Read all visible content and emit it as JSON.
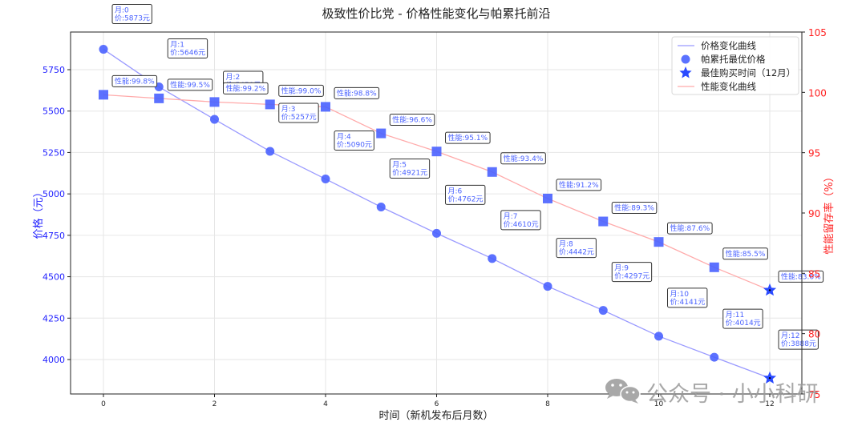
{
  "chart_data": {
    "type": "line",
    "title": "极致性价比党 - 价格性能变化与帕累托前沿",
    "xlabel": "时间（新机发布后月数）",
    "ylabel": "价格（元）",
    "ylabel_right": "性能留存率（%）",
    "x": [
      0,
      1,
      2,
      3,
      4,
      5,
      6,
      7,
      8,
      9,
      10,
      11,
      12
    ],
    "xticks": [
      0,
      2,
      4,
      6,
      8,
      10,
      12
    ],
    "yticks_left": [
      4000,
      4250,
      4500,
      4750,
      5000,
      5250,
      5500,
      5750
    ],
    "yticks_right": [
      75,
      80,
      85,
      90,
      95,
      100,
      105
    ],
    "ylim_right": [
      75,
      105
    ],
    "grid": true,
    "legend_position": "upper right",
    "series": [
      {
        "name": "价格变化曲线",
        "axis": "left",
        "color": "#8a8aff",
        "values": [
          5873,
          5646,
          5450,
          5257,
          5090,
          4921,
          4762,
          4610,
          4442,
          4297,
          4141,
          4014,
          3888
        ]
      },
      {
        "name": "帕累托最优价格",
        "axis": "left",
        "marker": "circle",
        "color": "#4a62ff",
        "values": [
          5873,
          5646,
          5450,
          5257,
          5090,
          4921,
          4762,
          4610,
          4442,
          4297,
          4141,
          4014,
          3888
        ]
      },
      {
        "name": "性能变化曲线",
        "axis": "right",
        "marker": "square",
        "color": "#ff9a9a",
        "values": [
          99.8,
          99.5,
          99.2,
          99.0,
          98.8,
          96.6,
          95.1,
          93.4,
          91.2,
          89.3,
          87.6,
          85.5,
          83.6
        ]
      },
      {
        "name": "最佳购买时间（12月）",
        "marker": "star",
        "color": "#2a4aff",
        "x": 12,
        "price": 3888,
        "performance": 83.6
      }
    ],
    "annotations": {
      "price_labels": [
        {
          "month": "月:0",
          "price": "价:5873元"
        },
        {
          "month": "月:1",
          "price": "价:5646元"
        },
        {
          "month": "月:2",
          "price": "价:5450元"
        },
        {
          "month": "月:3",
          "price": "价:5257元"
        },
        {
          "month": "月:4",
          "price": "价:5090元"
        },
        {
          "month": "月:5",
          "price": "价:4921元"
        },
        {
          "month": "月:6",
          "price": "价:4762元"
        },
        {
          "month": "月:7",
          "price": "价:4610元"
        },
        {
          "month": "月:8",
          "price": "价:4442元"
        },
        {
          "month": "月:9",
          "price": "价:4297元"
        },
        {
          "month": "月:10",
          "price": "价:4141元"
        },
        {
          "month": "月:11",
          "price": "价:4014元"
        },
        {
          "month": "月:12",
          "price": "价:3888元"
        }
      ],
      "performance_labels": [
        "性能:99.8%",
        "性能:99.5%",
        "性能:99.2%",
        "性能:99.0%",
        "性能:98.8%",
        "性能:96.6%",
        "性能:95.1%",
        "性能:93.4%",
        "性能:91.2%",
        "性能:89.3%",
        "性能:87.6%",
        "性能:85.5%",
        "性能:83.6%"
      ]
    }
  },
  "legend": {
    "items": [
      "价格变化曲线",
      "帕累托最优价格",
      "最佳购买时间（12月）",
      "性能变化曲线"
    ]
  },
  "watermark": {
    "text": "公众号 · 小小科研",
    "icon": "wechat-icon"
  },
  "colors": {
    "price_line": "#9a9aff",
    "price_marker": "#4a62ff",
    "perf_line": "#ffaaaa",
    "perf_marker": "#4a62ff",
    "left_axis": "#1f1fff",
    "right_axis": "#ff2020"
  }
}
